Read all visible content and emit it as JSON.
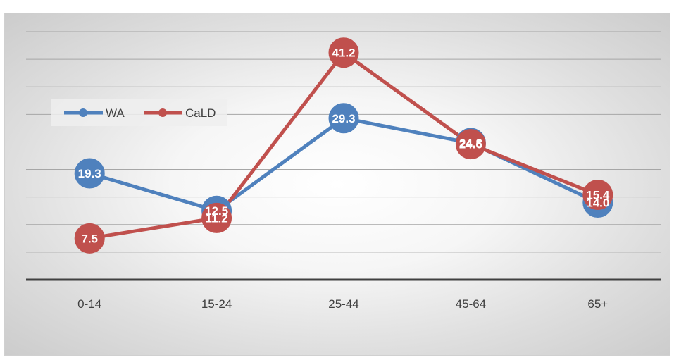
{
  "chart_data": {
    "type": "line",
    "categories": [
      "0-14",
      "15-24",
      "25-44",
      "45-64",
      "65+"
    ],
    "series": [
      {
        "name": "WA",
        "values": [
          19.3,
          12.5,
          29.3,
          24.8,
          14.0
        ],
        "color": "#4f81bd"
      },
      {
        "name": "CaLD",
        "values": [
          7.5,
          11.2,
          41.2,
          24.6,
          15.4
        ],
        "color": "#c0504d"
      }
    ],
    "ylim": [
      0,
      45
    ],
    "grid": true,
    "legend": "top-left",
    "title": "",
    "xlabel": "",
    "ylabel": ""
  }
}
